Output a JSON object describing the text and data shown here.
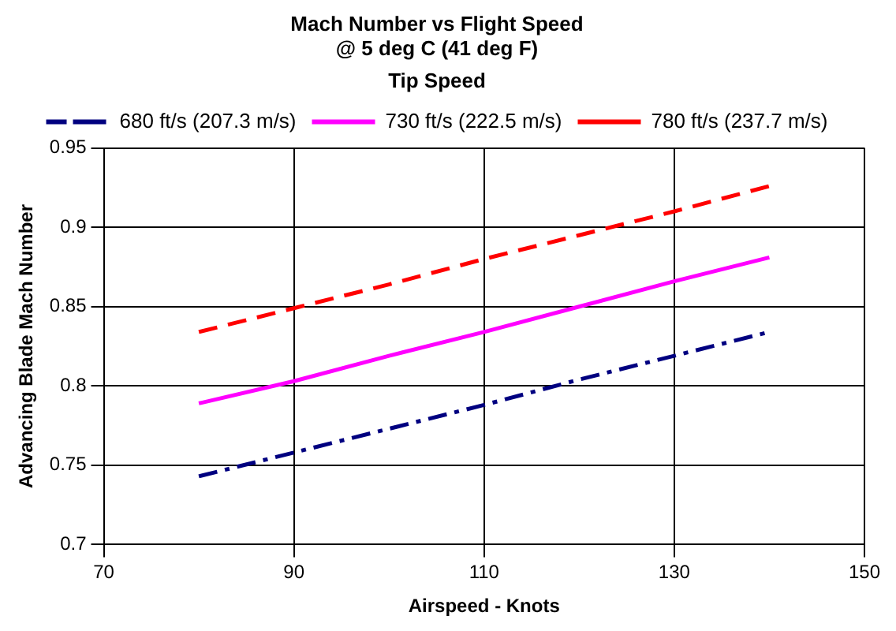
{
  "chart_data": {
    "type": "line",
    "title": "Mach Number vs Flight Speed",
    "subtitle": "@ 5 deg C (41 deg F)",
    "xlabel": "Airspeed - Knots",
    "ylabel": "Advancing Blade Mach Number",
    "legend_title": "Tip Speed",
    "legend": "top",
    "grid": true,
    "marker": "none",
    "x": [
      80,
      90,
      100,
      110,
      120,
      130,
      140
    ],
    "xlim": [
      70,
      150
    ],
    "xticks": [
      70,
      90,
      110,
      130,
      150
    ],
    "ylim": [
      0.7,
      0.95
    ],
    "yticks": [
      0.7,
      0.75,
      0.8,
      0.85,
      0.9,
      0.95
    ],
    "series": [
      {
        "name": "680 ft/s (207.3 m/s)",
        "color": "#000080",
        "line_style": "dashdot",
        "values": [
          0.743,
          0.758,
          0.773,
          0.788,
          0.804,
          0.819,
          0.834
        ]
      },
      {
        "name": "730 ft/s (222.5 m/s)",
        "color": "#ff00ff",
        "line_style": "solid",
        "values": [
          0.789,
          0.803,
          0.819,
          0.834,
          0.85,
          0.866,
          0.881
        ]
      },
      {
        "name": "780 ft/s (237.7 m/s)",
        "color": "#ff0000",
        "line_style": "dashed",
        "values": [
          0.834,
          0.849,
          0.864,
          0.88,
          0.895,
          0.91,
          0.926
        ]
      }
    ]
  }
}
